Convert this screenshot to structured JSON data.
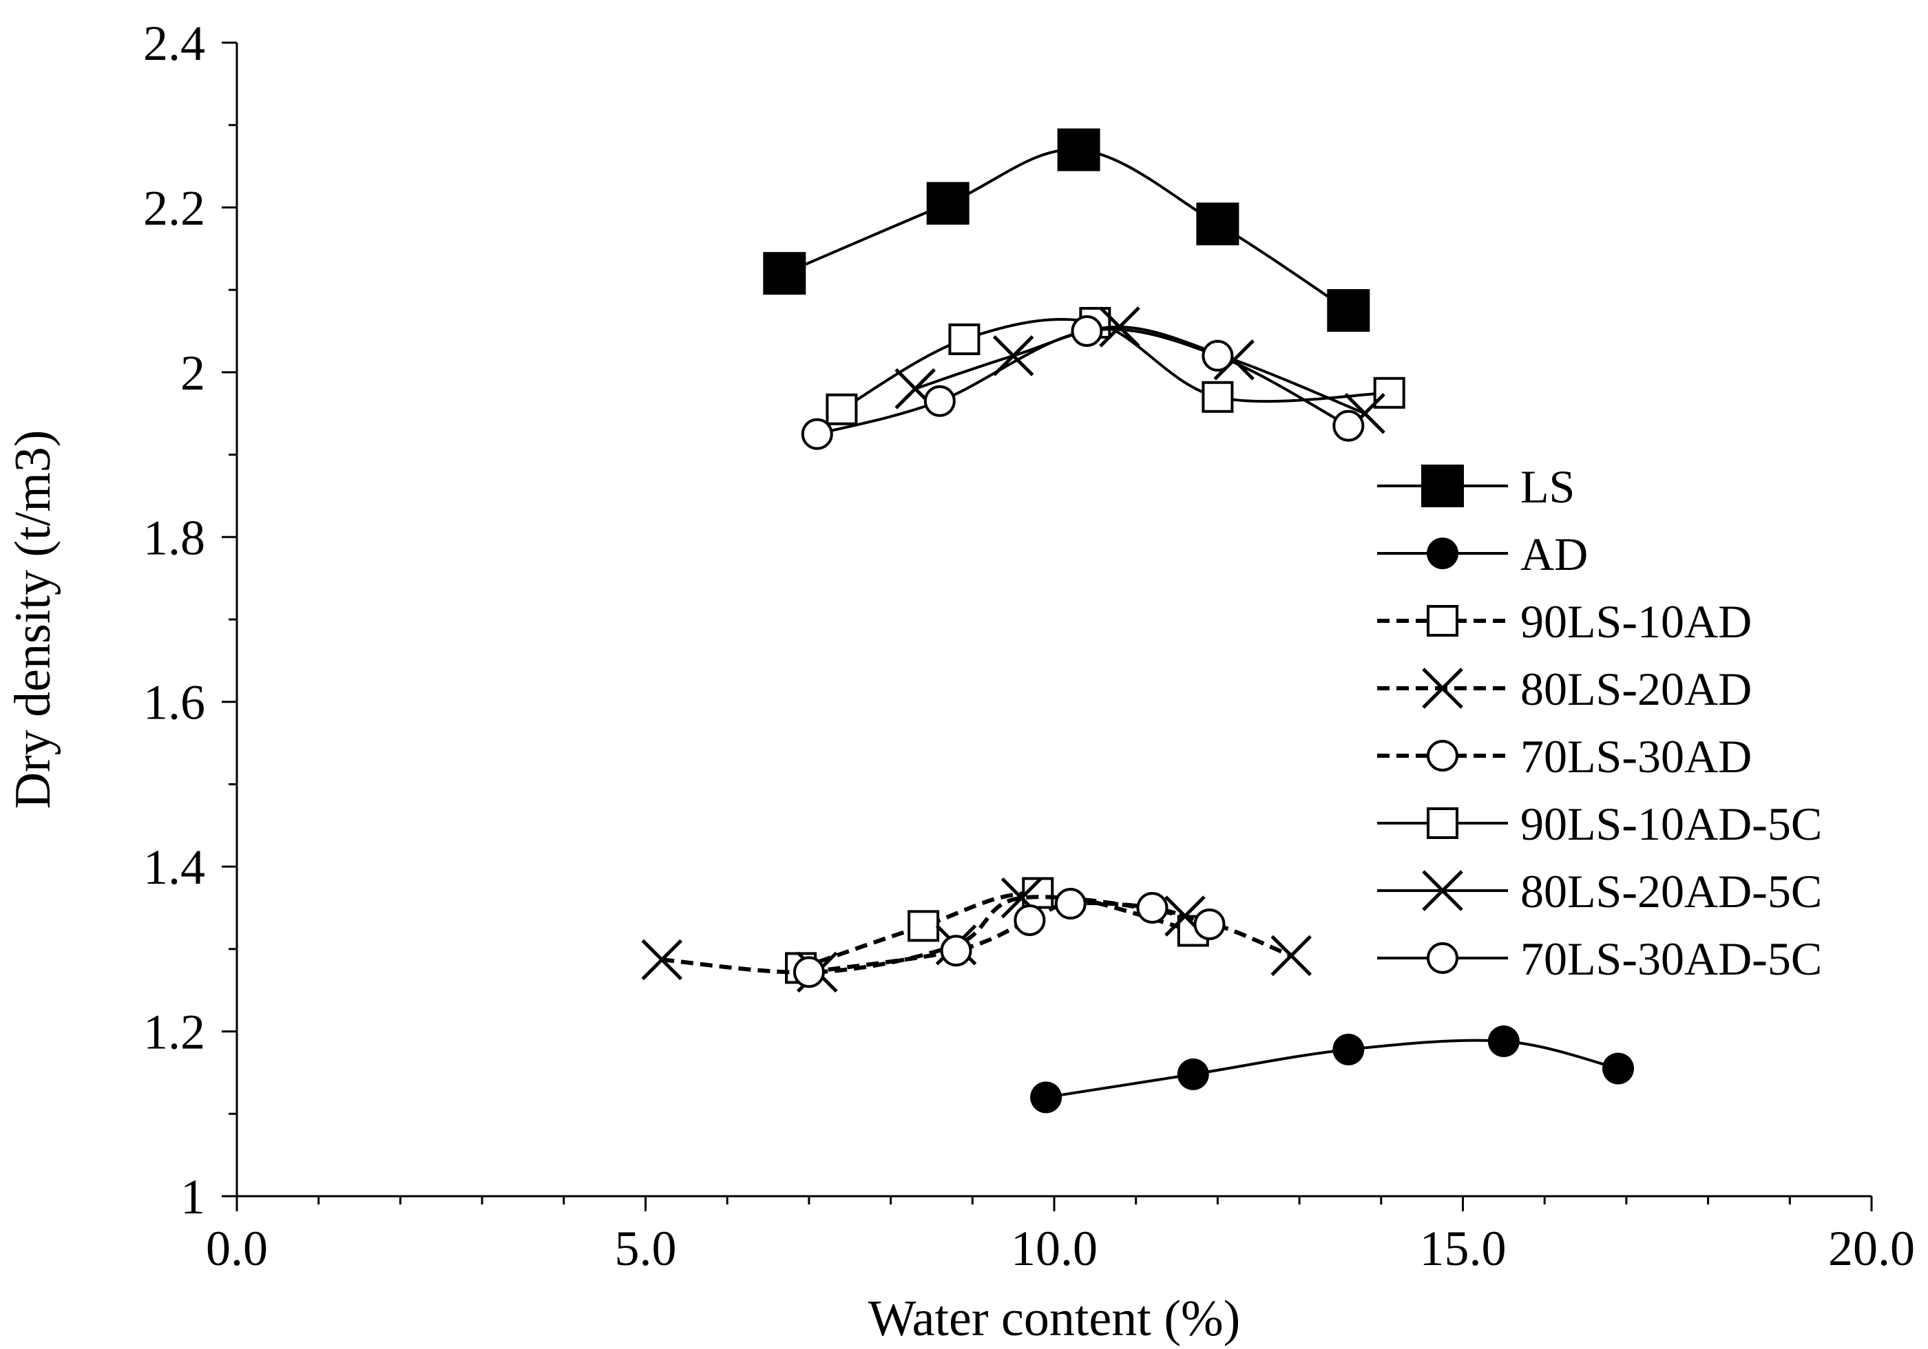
{
  "chart_data": {
    "type": "scatter",
    "title": "",
    "xlabel": "Water content (%)",
    "ylabel": "Dry density (t/m3)",
    "xlim": [
      0,
      20
    ],
    "ylim": [
      1,
      2.4
    ],
    "x_ticks": [
      "0.0",
      "5.0",
      "10.0",
      "15.0",
      "20.0"
    ],
    "y_ticks": [
      "1",
      "1.2",
      "1.4",
      "1.6",
      "1.8",
      "2",
      "2.2",
      "2.4"
    ],
    "x_tick_values": [
      0,
      5,
      10,
      15,
      20
    ],
    "y_tick_values": [
      1,
      1.2,
      1.4,
      1.6,
      1.8,
      2,
      2.2,
      2.4
    ],
    "grid": false,
    "legend_position": "right",
    "series": [
      {
        "name": "LS",
        "marker": "filled-square",
        "line": "solid",
        "x": [
          6.7,
          8.7,
          10.3,
          12.0,
          13.6
        ],
        "y": [
          2.12,
          2.205,
          2.27,
          2.18,
          2.075
        ]
      },
      {
        "name": "AD",
        "marker": "filled-circle",
        "line": "solid",
        "x": [
          9.9,
          11.7,
          13.6,
          15.5,
          16.9
        ],
        "y": [
          1.12,
          1.148,
          1.178,
          1.188,
          1.155
        ]
      },
      {
        "name": "90LS-10AD",
        "marker": "open-square",
        "line": "dashed",
        "x": [
          6.9,
          8.4,
          9.8,
          11.7
        ],
        "y": [
          1.277,
          1.328,
          1.368,
          1.322
        ]
      },
      {
        "name": "80LS-20AD",
        "marker": "x",
        "line": "dashed",
        "x": [
          5.2,
          7.1,
          8.8,
          9.6,
          11.6,
          12.9
        ],
        "y": [
          1.287,
          1.272,
          1.305,
          1.362,
          1.34,
          1.292
        ]
      },
      {
        "name": "70LS-30AD",
        "marker": "open-circle",
        "line": "dashed",
        "x": [
          7.0,
          8.8,
          9.7,
          10.2,
          11.2,
          11.9
        ],
        "y": [
          1.272,
          1.298,
          1.335,
          1.355,
          1.35,
          1.33
        ]
      },
      {
        "name": "90LS-10AD-5C",
        "marker": "open-square",
        "line": "solid",
        "x": [
          7.4,
          8.9,
          10.5,
          12.0,
          14.1
        ],
        "y": [
          1.955,
          2.04,
          2.06,
          1.97,
          1.975
        ]
      },
      {
        "name": "80LS-20AD-5C",
        "marker": "x",
        "line": "solid",
        "x": [
          8.3,
          9.5,
          10.8,
          12.2,
          13.8
        ],
        "y": [
          1.98,
          2.02,
          2.055,
          2.015,
          1.95
        ]
      },
      {
        "name": "70LS-30AD-5C",
        "marker": "open-circle",
        "line": "solid",
        "x": [
          7.1,
          8.6,
          10.4,
          12.0,
          13.6
        ],
        "y": [
          1.925,
          1.965,
          2.05,
          2.02,
          1.935
        ]
      }
    ]
  }
}
